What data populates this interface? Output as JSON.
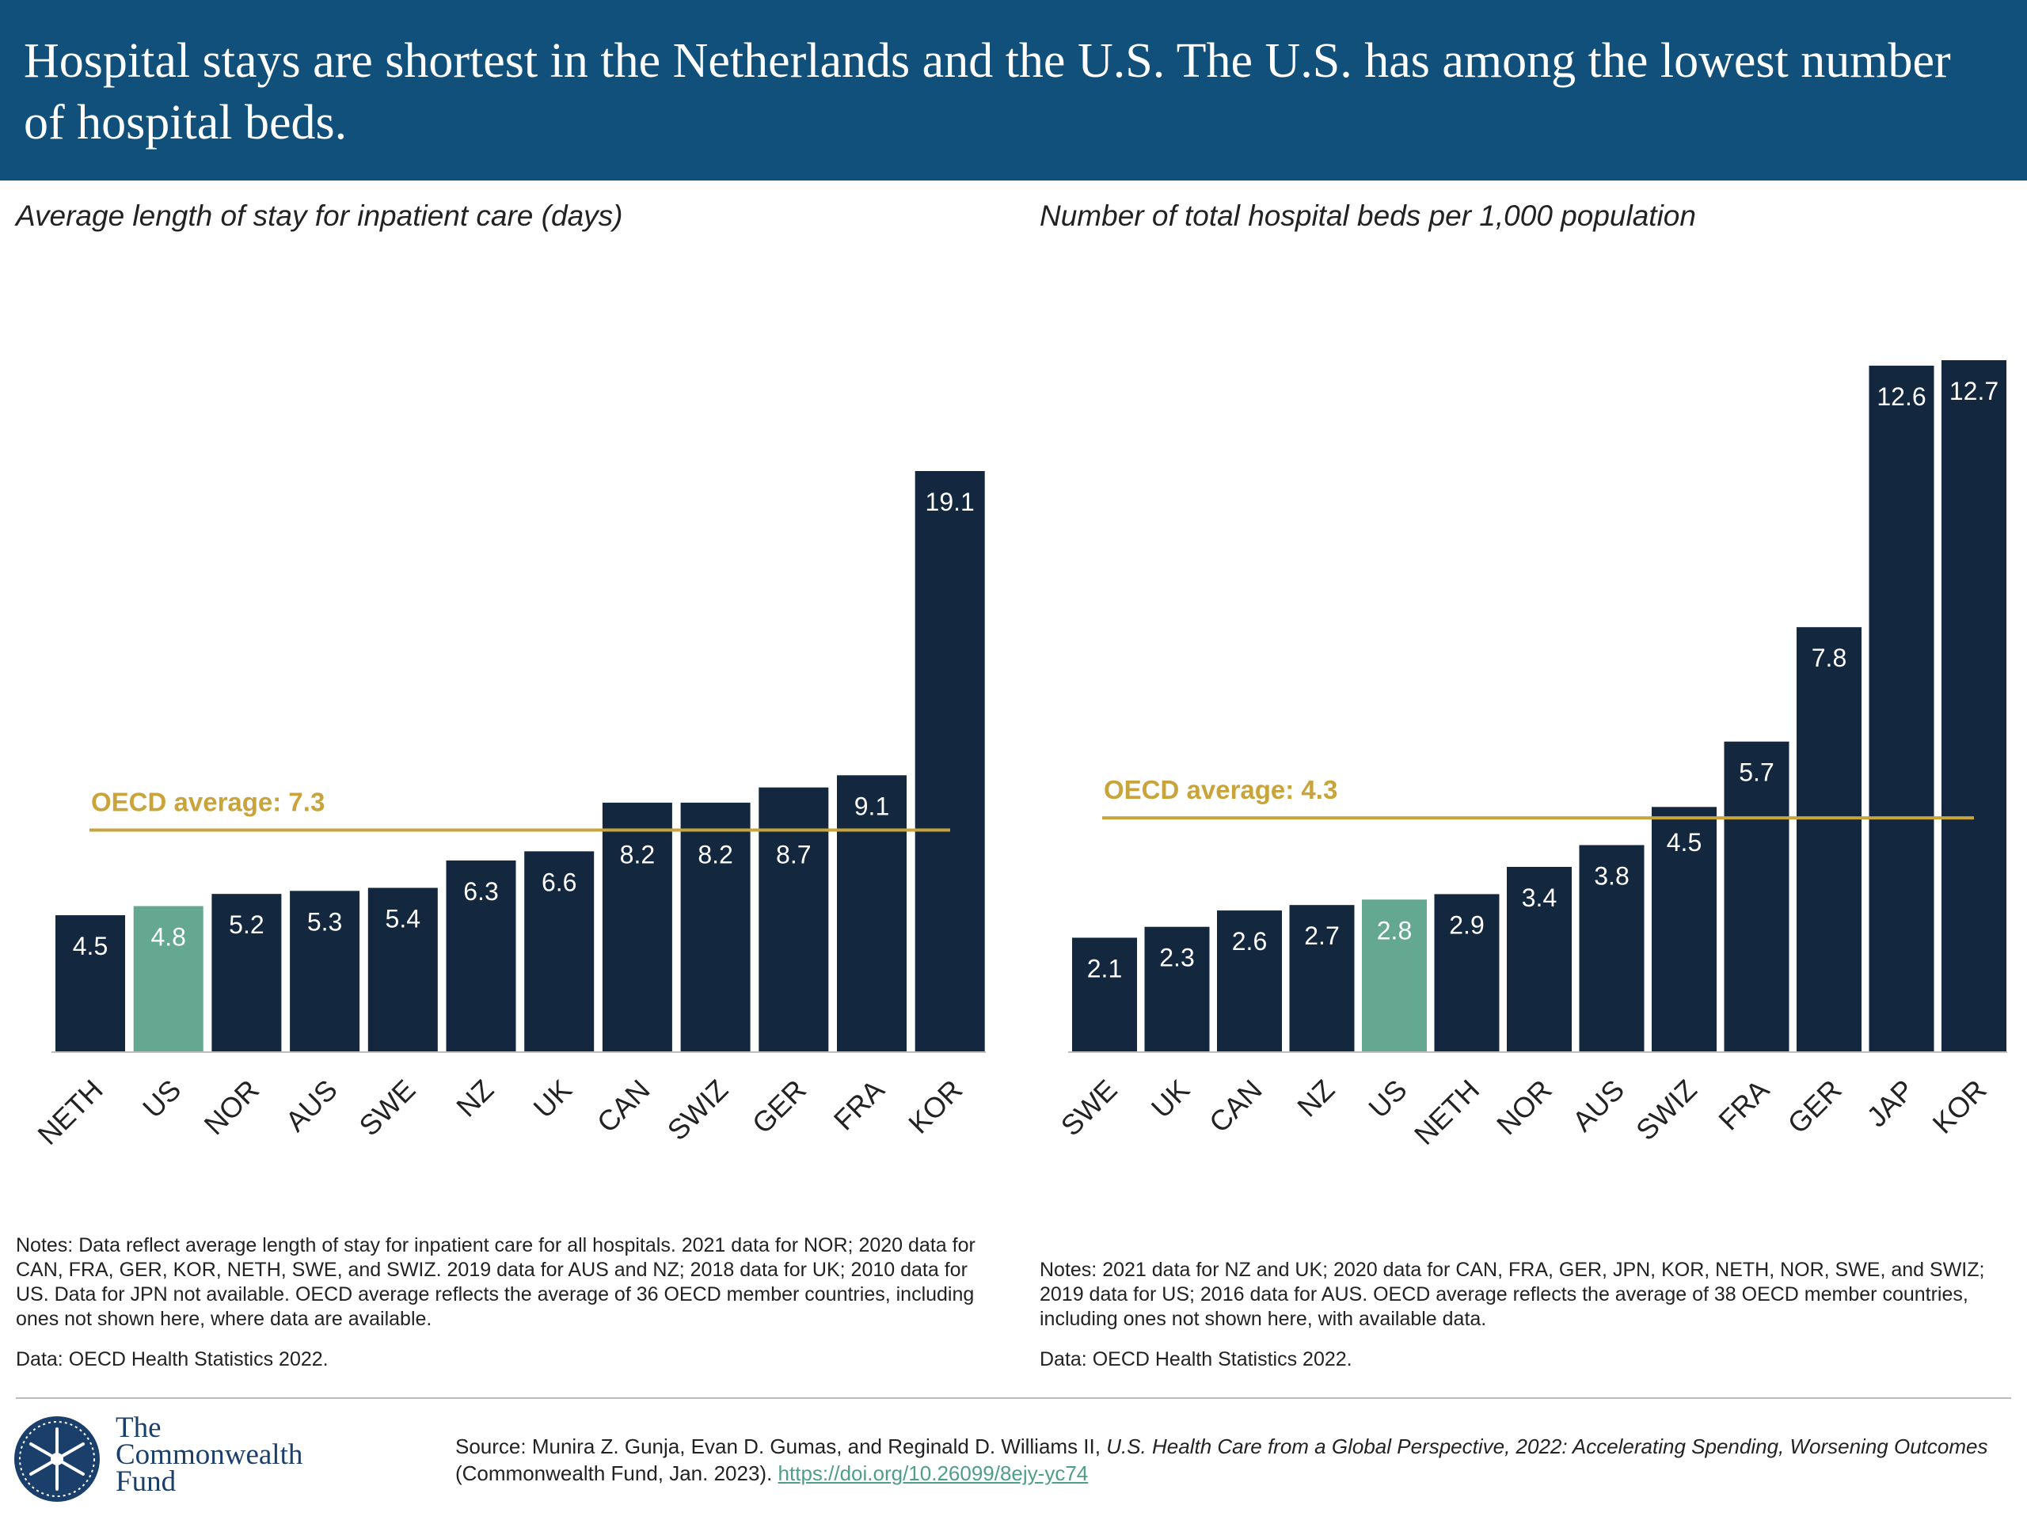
{
  "header": {
    "title": "Hospital stays are shortest in the Netherlands and the U.S. The U.S. has among the lowest number of hospital beds."
  },
  "colors": {
    "banner": "#11507a",
    "bar": "#13273f",
    "highlight": "#64a891",
    "average_line": "#c9a43a",
    "label_text": "#ffffff"
  },
  "chart_data": [
    {
      "type": "bar",
      "title": "Average length of stay for inpatient care (days)",
      "categories": [
        "NETH",
        "US",
        "NOR",
        "AUS",
        "SWE",
        "NZ",
        "UK",
        "CAN",
        "SWIZ",
        "GER",
        "FRA",
        "KOR"
      ],
      "values": [
        4.5,
        4.8,
        5.2,
        5.3,
        5.4,
        6.3,
        6.6,
        8.2,
        8.2,
        8.7,
        9.1,
        19.1
      ],
      "highlight": "US",
      "reference_line": {
        "label": "OECD average: 7.3",
        "value": 7.3
      },
      "ylim": [
        0,
        19.1
      ],
      "notes": "Notes: Data reflect average length of stay for inpatient care for all hospitals. 2021 data for NOR; 2020 data for CAN, FRA, GER, KOR, NETH, SWE, and SWIZ. 2019 data for AUS and NZ; 2018 data for UK; 2010 data for US. Data for JPN not available. OECD average reflects the average of 36 OECD member countries, including ones not shown here, where data are available.",
      "data_source": "Data: OECD Health Statistics 2022."
    },
    {
      "type": "bar",
      "title": "Number of total hospital beds per 1,000 population",
      "categories": [
        "SWE",
        "UK",
        "CAN",
        "NZ",
        "US",
        "NETH",
        "NOR",
        "AUS",
        "SWIZ",
        "FRA",
        "GER",
        "JAP",
        "KOR"
      ],
      "values": [
        2.1,
        2.3,
        2.6,
        2.7,
        2.8,
        2.9,
        3.4,
        3.8,
        4.5,
        5.7,
        7.8,
        12.6,
        12.7
      ],
      "highlight": "US",
      "reference_line": {
        "label": "OECD average: 4.3",
        "value": 4.3
      },
      "ylim": [
        0,
        12.7
      ],
      "notes": "Notes: 2021 data for NZ and UK; 2020 data for CAN, FRA, GER, JPN, KOR, NETH, NOR, SWE, and SWIZ; 2019 data for US; 2016 data for AUS. OECD average reflects the average of 38 OECD member countries, including ones not shown here, with available data.",
      "data_source": "Data: OECD Health Statistics 2022."
    }
  ],
  "footer": {
    "logo": {
      "line1": "The",
      "line2": "Commonwealth",
      "line3": "Fund"
    },
    "source_prefix": "Source: Munira Z. Gunja, Evan D. Gumas, and Reginald D. Williams II, ",
    "source_title": "U.S. Health Care from a Global Perspective, 2022: Accelerating Spending, Worsening Outcomes",
    "source_suffix": " (Commonwealth Fund, Jan. 2023). ",
    "source_doi": "https://doi.org/10.26099/8ejy-yc74"
  }
}
